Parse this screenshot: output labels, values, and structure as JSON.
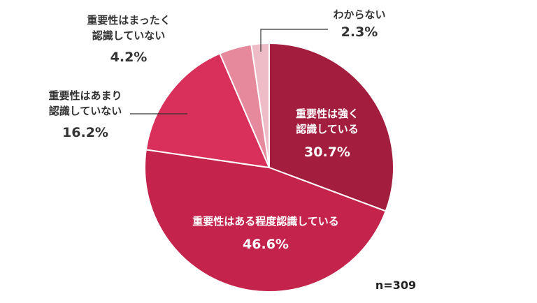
{
  "chart_data": {
    "type": "pie",
    "title": "",
    "sample_size_label": "n=309",
    "slices": [
      {
        "label_lines": [
          "重要性は強く",
          "認識している"
        ],
        "value": 30.7,
        "value_text": "30.7%",
        "color": "#a31e3e",
        "text_color": "#ffffff"
      },
      {
        "label_lines": [
          "重要性はある程度認識している"
        ],
        "value": 46.6,
        "value_text": "46.6%",
        "color": "#c4244c",
        "text_color": "#ffffff"
      },
      {
        "label_lines": [
          "重要性はあまり",
          "認識していない"
        ],
        "value": 16.2,
        "value_text": "16.2%",
        "color": "#d8305a",
        "text_color": "#333333"
      },
      {
        "label_lines": [
          "重要性はまったく",
          "認識していない"
        ],
        "value": 4.2,
        "value_text": "4.2%",
        "color": "#e6899c",
        "text_color": "#333333"
      },
      {
        "label_lines": [
          "わからない"
        ],
        "value": 2.3,
        "value_text": "2.3%",
        "color": "#eebcc6",
        "text_color": "#333333"
      }
    ]
  }
}
